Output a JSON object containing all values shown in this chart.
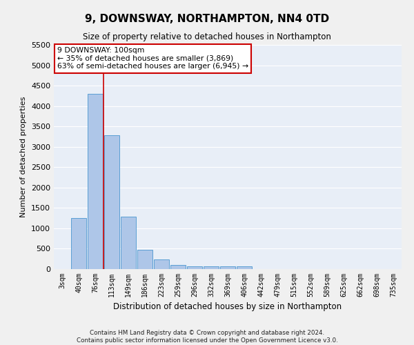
{
  "title": "9, DOWNSWAY, NORTHAMPTON, NN4 0TD",
  "subtitle": "Size of property relative to detached houses in Northampton",
  "xlabel": "Distribution of detached houses by size in Northampton",
  "ylabel": "Number of detached properties",
  "footnote1": "Contains HM Land Registry data © Crown copyright and database right 2024.",
  "footnote2": "Contains public sector information licensed under the Open Government Licence v3.0.",
  "bar_labels": [
    "3sqm",
    "40sqm",
    "76sqm",
    "113sqm",
    "149sqm",
    "186sqm",
    "223sqm",
    "259sqm",
    "296sqm",
    "332sqm",
    "369sqm",
    "406sqm",
    "442sqm",
    "479sqm",
    "515sqm",
    "552sqm",
    "589sqm",
    "625sqm",
    "662sqm",
    "698sqm",
    "735sqm"
  ],
  "bar_values": [
    0,
    1250,
    4300,
    3280,
    1280,
    480,
    230,
    100,
    70,
    60,
    60,
    60,
    0,
    0,
    0,
    0,
    0,
    0,
    0,
    0,
    0
  ],
  "bar_color": "#aec6e8",
  "bar_edge_color": "#5a9fd4",
  "background_color": "#e8eef7",
  "grid_color": "#ffffff",
  "vline_x_index": 2.5,
  "vline_color": "#cc0000",
  "annotation_line1": "9 DOWNSWAY: 100sqm",
  "annotation_line2": "← 35% of detached houses are smaller (3,869)",
  "annotation_line3": "63% of semi-detached houses are larger (6,945) →",
  "annotation_box_color": "#ffffff",
  "annotation_box_edge_color": "#cc0000",
  "ylim": [
    0,
    5500
  ],
  "yticks": [
    0,
    500,
    1000,
    1500,
    2000,
    2500,
    3000,
    3500,
    4000,
    4500,
    5000,
    5500
  ]
}
